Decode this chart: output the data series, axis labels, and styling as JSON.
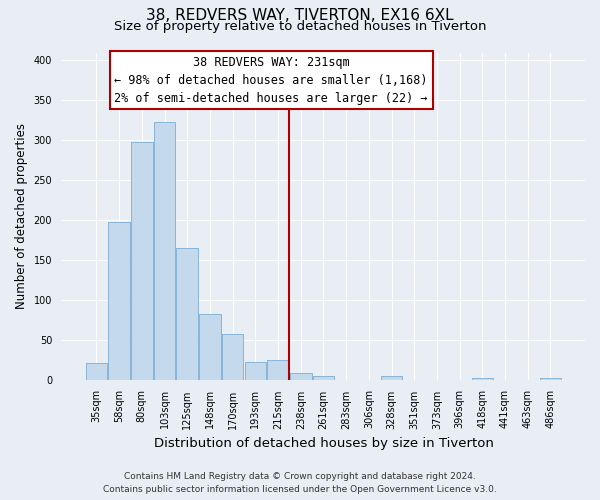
{
  "title": "38, REDVERS WAY, TIVERTON, EX16 6XL",
  "subtitle": "Size of property relative to detached houses in Tiverton",
  "xlabel": "Distribution of detached houses by size in Tiverton",
  "ylabel": "Number of detached properties",
  "bar_labels": [
    "35sqm",
    "58sqm",
    "80sqm",
    "103sqm",
    "125sqm",
    "148sqm",
    "170sqm",
    "193sqm",
    "215sqm",
    "238sqm",
    "261sqm",
    "283sqm",
    "306sqm",
    "328sqm",
    "351sqm",
    "373sqm",
    "396sqm",
    "418sqm",
    "441sqm",
    "463sqm",
    "486sqm"
  ],
  "bar_values": [
    21,
    197,
    298,
    323,
    165,
    82,
    57,
    22,
    24,
    8,
    5,
    0,
    0,
    5,
    0,
    0,
    0,
    2,
    0,
    0,
    2
  ],
  "bar_color": "#c5d9ed",
  "bar_edge_color": "#7aadd4",
  "vline_x_idx": 9,
  "vline_color": "#aa0000",
  "annotation_title": "38 REDVERS WAY: 231sqm",
  "annotation_line1": "← 98% of detached houses are smaller (1,168)",
  "annotation_line2": "2% of semi-detached houses are larger (22) →",
  "annotation_box_color": "#ffffff",
  "annotation_box_edge": "#aa0000",
  "footer_line1": "Contains HM Land Registry data © Crown copyright and database right 2024.",
  "footer_line2": "Contains public sector information licensed under the Open Government Licence v3.0.",
  "ylim": [
    0,
    410
  ],
  "yticks": [
    0,
    50,
    100,
    150,
    200,
    250,
    300,
    350,
    400
  ],
  "title_fontsize": 11,
  "subtitle_fontsize": 9.5,
  "xlabel_fontsize": 9.5,
  "ylabel_fontsize": 8.5,
  "tick_fontsize": 7,
  "footer_fontsize": 6.5,
  "annotation_fontsize": 8.5,
  "background_color": "#e8eef4",
  "grid_color": "#ffffff"
}
